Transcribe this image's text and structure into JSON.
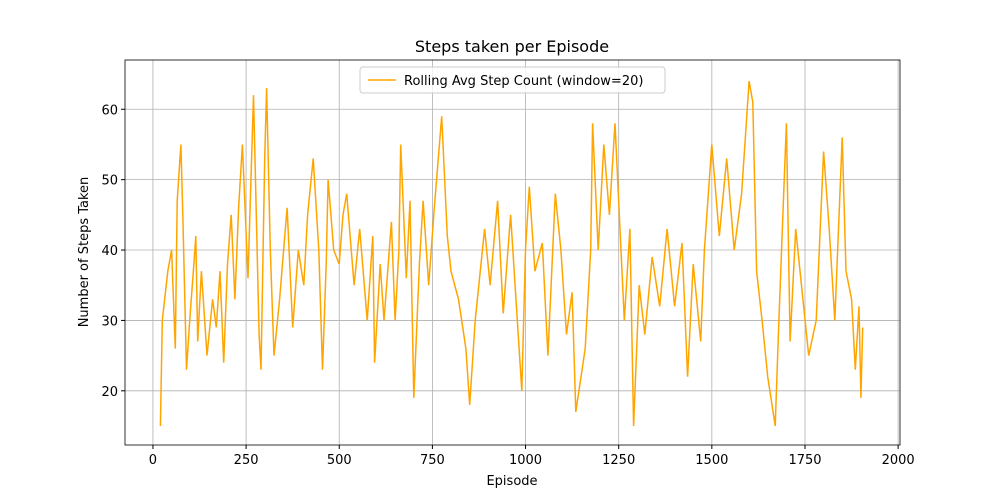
{
  "chart_data": {
    "type": "line",
    "title": "Steps taken per Episode",
    "xlabel": "Episode",
    "ylabel": "Number of Steps Taken",
    "x": [
      20,
      25,
      40,
      50,
      60,
      65,
      75,
      80,
      90,
      100,
      110,
      115,
      120,
      130,
      145,
      160,
      170,
      180,
      190,
      200,
      210,
      220,
      230,
      240,
      255,
      270,
      285,
      290,
      300,
      305,
      315,
      325,
      340,
      360,
      375,
      390,
      405,
      415,
      430,
      445,
      455,
      465,
      470,
      485,
      500,
      510,
      520,
      540,
      555,
      575,
      590,
      595,
      610,
      620,
      640,
      650,
      660,
      665,
      680,
      690,
      700,
      715,
      725,
      740,
      755,
      775,
      790,
      800,
      820,
      840,
      850,
      865,
      890,
      905,
      925,
      940,
      960,
      990,
      1000,
      1010,
      1025,
      1045,
      1060,
      1080,
      1095,
      1110,
      1125,
      1135,
      1160,
      1175,
      1180,
      1195,
      1210,
      1225,
      1240,
      1265,
      1280,
      1290,
      1305,
      1320,
      1340,
      1360,
      1380,
      1400,
      1420,
      1435,
      1450,
      1470,
      1480,
      1500,
      1520,
      1540,
      1560,
      1580,
      1600,
      1610,
      1620,
      1635,
      1650,
      1670,
      1680,
      1690,
      1700,
      1710,
      1725,
      1760,
      1780,
      1800,
      1815,
      1830,
      1850,
      1860,
      1875,
      1885,
      1895,
      1900,
      1905
    ],
    "series": [
      {
        "name": "Rolling Avg Step Count (window=20)",
        "color": "#ffa500",
        "values": [
          15,
          30,
          37,
          40,
          26,
          47,
          55,
          45,
          23,
          31,
          38,
          42,
          27,
          37,
          25,
          33,
          29,
          37,
          24,
          38,
          45,
          33,
          46,
          55,
          36,
          62,
          28,
          23,
          53,
          63,
          40,
          25,
          33,
          46,
          29,
          40,
          35,
          45,
          53,
          40,
          23,
          38,
          50,
          40,
          38,
          45,
          48,
          35,
          43,
          30,
          42,
          24,
          38,
          30,
          44,
          30,
          40,
          55,
          36,
          47,
          19,
          38,
          47,
          35,
          46,
          59,
          42,
          37,
          33,
          26,
          18,
          30,
          43,
          35,
          47,
          31,
          45,
          20,
          40,
          49,
          37,
          41,
          25,
          48,
          40,
          28,
          34,
          17,
          26,
          40,
          58,
          40,
          55,
          45,
          58,
          30,
          43,
          15,
          35,
          28,
          39,
          32,
          43,
          32,
          41,
          22,
          38,
          27,
          40,
          55,
          42,
          53,
          40,
          48,
          64,
          61,
          37,
          30,
          22,
          15,
          30,
          44,
          58,
          27,
          43,
          25,
          30,
          54,
          43,
          30,
          56,
          37,
          33,
          23,
          32,
          19,
          29
        ]
      }
    ],
    "xlim": [
      -75,
      2005
    ],
    "ylim": [
      12.3,
      67.0
    ],
    "xticks": [
      0,
      250,
      500,
      750,
      1000,
      1250,
      1500,
      1750,
      2000
    ],
    "yticks": [
      20,
      30,
      40,
      50,
      60
    ],
    "grid": true,
    "legend": "upper center"
  }
}
